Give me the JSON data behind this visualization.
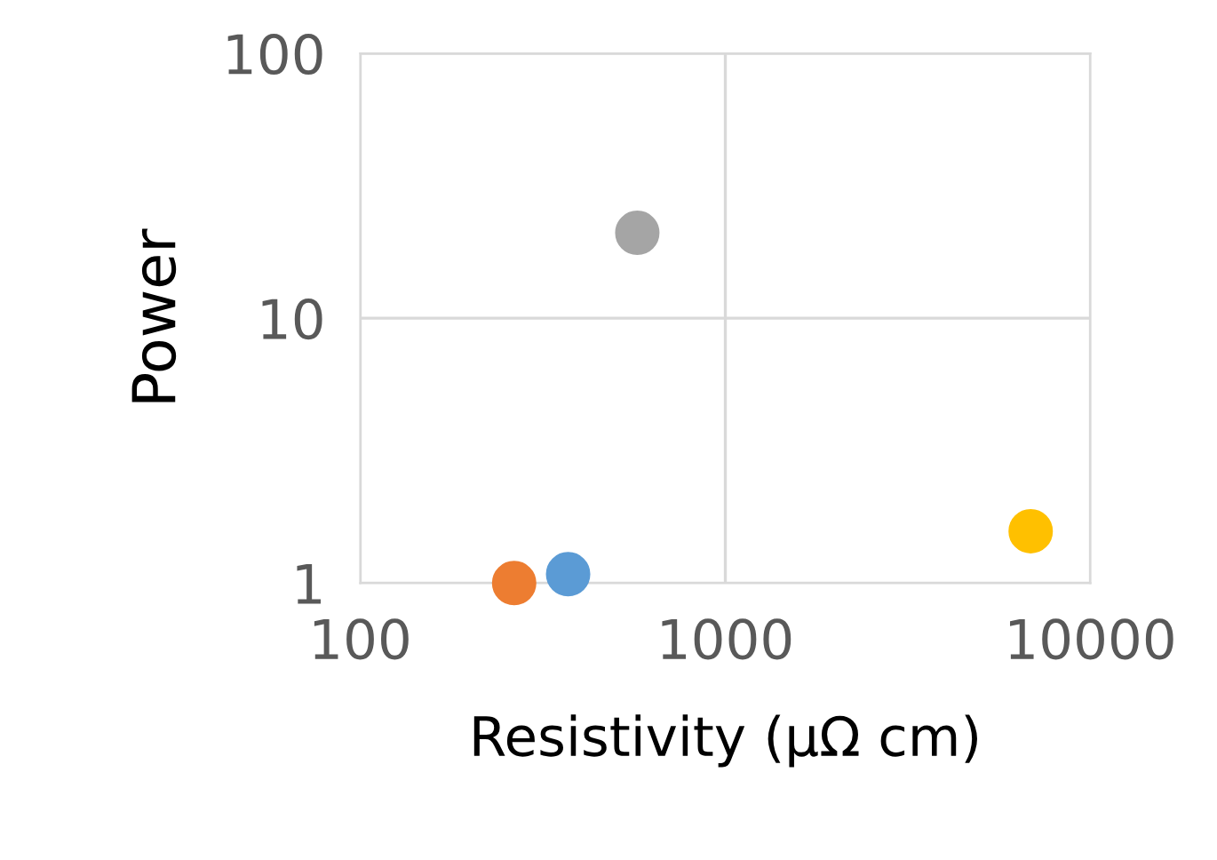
{
  "chart_data": {
    "type": "scatter",
    "xlabel": "Resistivity (μΩ cm)",
    "ylabel": "Power",
    "log": "xy",
    "xlim": [
      100,
      10000
    ],
    "xticks": [
      100,
      1000,
      10000
    ],
    "ylim": [
      1,
      100
    ],
    "yticks": [
      1,
      10,
      100
    ],
    "grid": true,
    "marker": "circle",
    "legend": false,
    "series": [
      {
        "x": [
          264,
          371,
          574,
          6860
        ],
        "values": [
          1.0,
          1.08,
          21,
          1.57
        ],
        "colors": [
          "#ed7d31",
          "#5b9bd5",
          "#a5a5a5",
          "#ffc000"
        ]
      }
    ]
  }
}
